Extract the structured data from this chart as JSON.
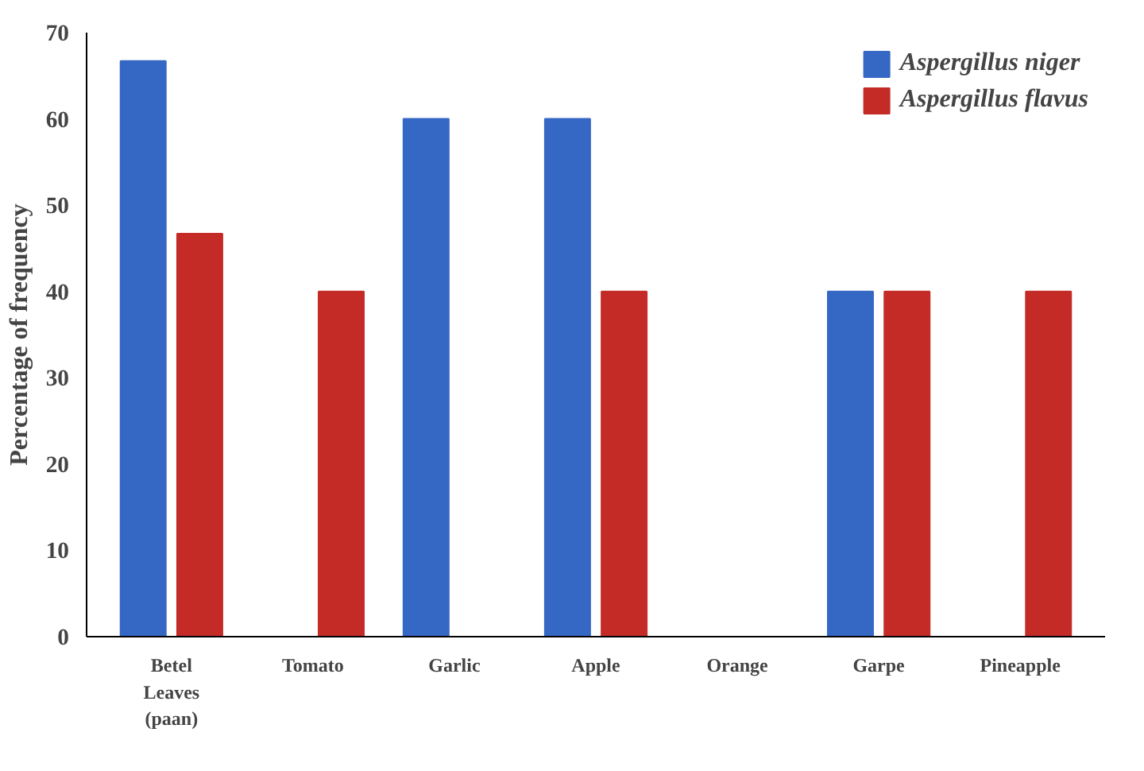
{
  "chart_data": {
    "type": "bar",
    "ylabel": "Percentage of frequency",
    "categories": [
      "Betel\nLeaves\n(paan)",
      "Tomato",
      "Garlic",
      "Apple",
      "Orange",
      "Garpe",
      "Pineapple"
    ],
    "series": [
      {
        "name": "Aspergillus niger",
        "color": "#3567c4",
        "values": [
          66.7,
          0,
          60,
          60,
          0,
          40,
          0
        ]
      },
      {
        "name": "Aspergillus flavus",
        "color": "#c42b27",
        "values": [
          46.7,
          40,
          0,
          40,
          0,
          40,
          40
        ]
      }
    ],
    "ylim": [
      0,
      70
    ],
    "yticks": [
      0,
      10,
      20,
      30,
      40,
      50,
      60,
      70
    ],
    "grid": false,
    "legend": "top right"
  }
}
